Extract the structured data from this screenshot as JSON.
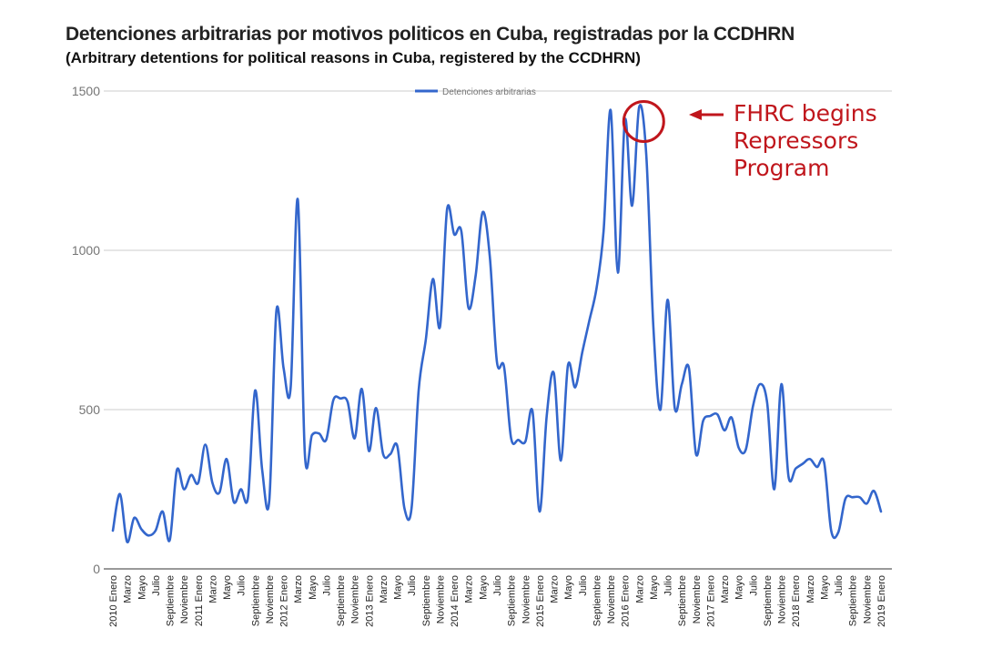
{
  "title": "Detenciones arbitrarias por motivos politicos en Cuba, registradas por la CCDHRN",
  "subtitle": "(Arbitrary detentions for political reasons in Cuba, registered by the CCDHRN)",
  "annotation": {
    "lines": [
      "FHRC begins",
      "Repressors",
      "Program"
    ],
    "color": "#c0161c"
  },
  "chart_data": {
    "type": "line",
    "title": "Detenciones arbitrarias por motivos politicos en Cuba, registradas por la CCDHRN",
    "xlabel": "",
    "ylabel": "",
    "ylim": [
      0,
      1500
    ],
    "yticks": [
      0,
      500,
      1000,
      1500
    ],
    "grid": true,
    "legend": "top-center",
    "tick_labels": [
      "2010 Enero",
      "Marzo",
      "Mayo",
      "Julio",
      "Septiembre",
      "Noviembre",
      "2011 Enero",
      "Marzo",
      "Mayo",
      "Julio",
      "Septiembre",
      "Noviembre",
      "2012 Enero",
      "Marzo",
      "Mayo",
      "Julio",
      "Septiembre",
      "Noviembre",
      "2013 Enero",
      "Marzo",
      "Mayo",
      "Julio",
      "Septiembre",
      "Noviembre",
      "2014 Enero",
      "Marzo",
      "Mayo",
      "Julio",
      "Septiembre",
      "Noviembre",
      "2015 Enero",
      "Marzo",
      "Mayo",
      "Julio",
      "Septiembre",
      "Noviembre",
      "2016 Enero",
      "Marzo",
      "Mayo",
      "Julio",
      "Septiembre",
      "Noviembre",
      "2017 Enero",
      "Marzo",
      "Mayo",
      "Julio",
      "Septiembre",
      "Noviembre",
      "2018 Enero",
      "Marzo",
      "Mayo",
      "Julio",
      "Septiembre",
      "Noviembre",
      "2019 Enero"
    ],
    "series": [
      {
        "name": "Detenciones arbitrarias",
        "color": "#3366cc",
        "values": [
          120,
          235,
          85,
          160,
          125,
          105,
          120,
          180,
          90,
          310,
          250,
          295,
          270,
          390,
          270,
          240,
          345,
          210,
          250,
          225,
          560,
          310,
          215,
          810,
          630,
          570,
          1160,
          360,
          420,
          425,
          405,
          530,
          535,
          525,
          410,
          565,
          370,
          505,
          360,
          360,
          385,
          190,
          190,
          560,
          720,
          910,
          760,
          1130,
          1050,
          1060,
          820,
          920,
          1120,
          980,
          650,
          635,
          410,
          405,
          400,
          495,
          180,
          480,
          615,
          340,
          640,
          570,
          680,
          780,
          880,
          1060,
          1440,
          930,
          1410,
          1140,
          1450,
          1300,
          760,
          500,
          845,
          505,
          580,
          630,
          360,
          465,
          480,
          485,
          435,
          475,
          380,
          375,
          510,
          580,
          520,
          250,
          580,
          290,
          315,
          330,
          345,
          320,
          335,
          120,
          115,
          220,
          225,
          225,
          205,
          245,
          180
        ]
      }
    ],
    "annotation_circle_label": "FHRC begins Repressors Program",
    "annotation_circle_month_index": 74
  }
}
